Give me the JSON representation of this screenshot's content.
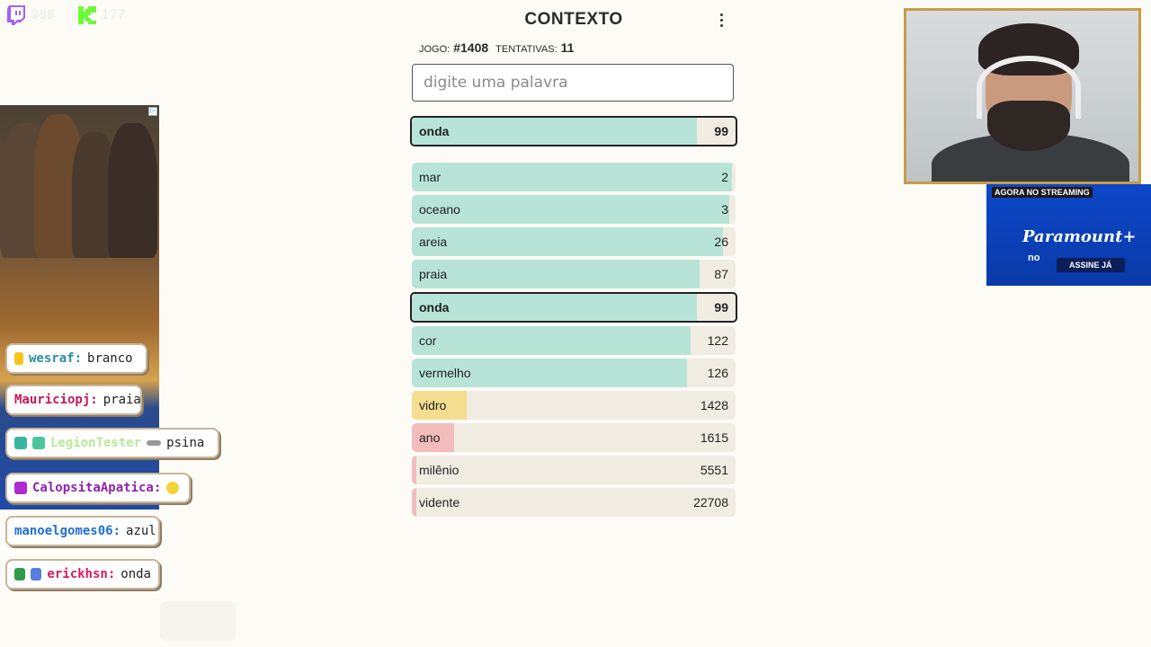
{
  "stream": {
    "twitch_viewers": "808",
    "kick_viewers": "177"
  },
  "game": {
    "title": "CONTEXTO",
    "meta": {
      "game_label": "JOGO:",
      "game_number": "#1408",
      "attempts_label": "TENTATIVAS:",
      "attempts": "11"
    },
    "input": {
      "placeholder": "digite uma palavra",
      "value": ""
    },
    "last_guess": {
      "word": "onda",
      "rank": "99",
      "fill_pct": 88,
      "color": "#b7e4d6"
    },
    "guesses": [
      {
        "word": "mar",
        "rank": "2",
        "fill_pct": 99,
        "color": "#b7e4d6",
        "highlight": false
      },
      {
        "word": "oceano",
        "rank": "3",
        "fill_pct": 98,
        "color": "#b7e4d6",
        "highlight": false
      },
      {
        "word": "areia",
        "rank": "26",
        "fill_pct": 96,
        "color": "#b7e4d6",
        "highlight": false
      },
      {
        "word": "praia",
        "rank": "87",
        "fill_pct": 89,
        "color": "#b7e4d6",
        "highlight": false
      },
      {
        "word": "onda",
        "rank": "99",
        "fill_pct": 88,
        "color": "#b7e4d6",
        "highlight": true
      },
      {
        "word": "cor",
        "rank": "122",
        "fill_pct": 86,
        "color": "#b7e4d6",
        "highlight": false
      },
      {
        "word": "vermelho",
        "rank": "126",
        "fill_pct": 85,
        "color": "#b7e4d6",
        "highlight": false
      },
      {
        "word": "vidro",
        "rank": "1428",
        "fill_pct": 17,
        "color": "#f4dd8f",
        "highlight": false
      },
      {
        "word": "ano",
        "rank": "1615",
        "fill_pct": 13,
        "color": "#f3bcbc",
        "highlight": false
      },
      {
        "word": "milênio",
        "rank": "5551",
        "fill_pct": 1,
        "color": "#f3bcbc",
        "highlight": false
      },
      {
        "word": "vidente",
        "rank": "22708",
        "fill_pct": 1,
        "color": "#f3bcbc",
        "highlight": false
      }
    ]
  },
  "chat": [
    {
      "user": "wesraf:",
      "text": "branco",
      "color": "#2a8fa0"
    },
    {
      "user": "Mauriciopj:",
      "text": "praia",
      "color": "#c2185b"
    },
    {
      "user": "LegionTester",
      "text": "psina",
      "color": "#b9e89a"
    },
    {
      "user": "CalopsitaApatica:",
      "text": "",
      "color": "#8e24aa"
    },
    {
      "user": "manoelgomes06:",
      "text": "azul",
      "color": "#1e6fd9"
    },
    {
      "user": "erickhsn:",
      "text": "onda",
      "color": "#d81b60"
    }
  ],
  "ad": {
    "tagline": "AGORA NO STREAMING",
    "brand": "Paramount+",
    "brand_suffix": "no",
    "cta": "ASSINE JÁ"
  }
}
